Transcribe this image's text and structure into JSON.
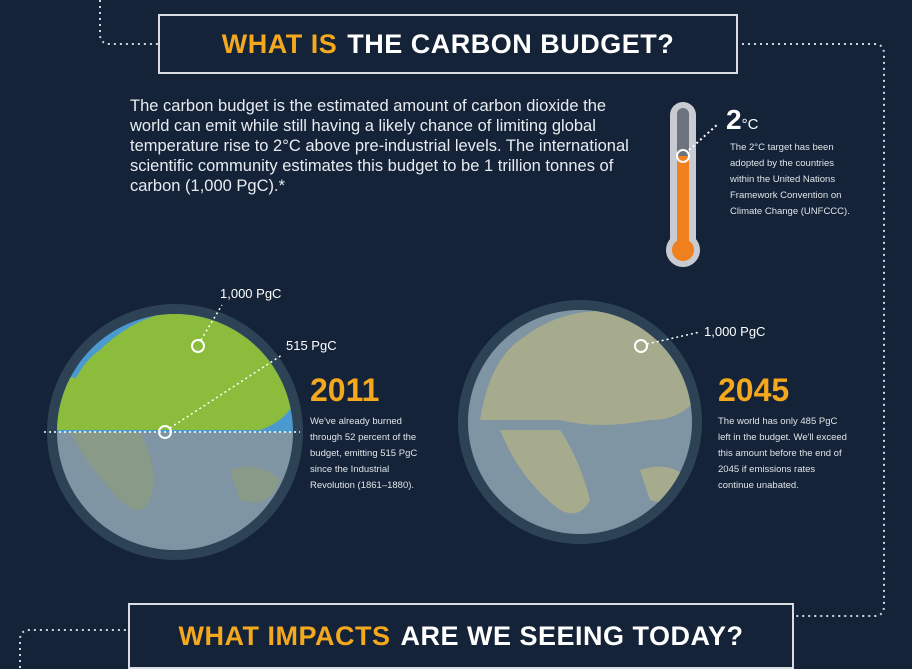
{
  "header": {
    "title_highlight": "WHAT IS",
    "title_rest": "THE CARBON BUDGET?"
  },
  "intro": "The carbon budget is the estimated amount of carbon dioxide the world can emit while still having a likely chance of limiting global temperature rise to 2°C above pre-industrial levels. The international scientific community estimates this budget to be 1 trillion tonnes of carbon (1,000 PgC).*",
  "thermometer": {
    "label": "2",
    "unit": "°C",
    "note": "The 2°C target has been adopted by the countries within the United Nations Framework Convention on Climate Change (UNFCCC)."
  },
  "globes": [
    {
      "labels": [
        "1,000 PgC",
        "515 PgC"
      ],
      "year": "2011",
      "text": "We've already burned through 52 percent of the budget, emitting 515 PgC since the Industrial Revolution (1861–1880)."
    },
    {
      "labels": [
        "1,000 PgC"
      ],
      "year": "2045",
      "text": "The world has only 485 PgC left in the budget. We'll exceed this amount before the end of 2045 if emissions rates continue unabated."
    }
  ],
  "footer": {
    "title_highlight": "WHAT IMPACTS",
    "title_rest": "ARE WE SEEING TODAY?"
  }
}
